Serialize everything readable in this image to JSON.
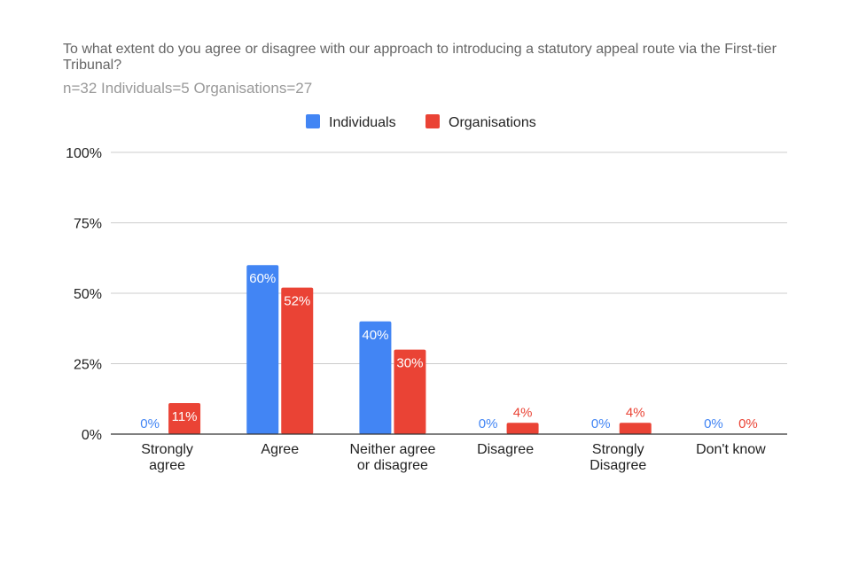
{
  "chart_data": {
    "type": "bar",
    "title": "To what extent do you agree or disagree with our approach to introducing a statutory appeal route via the First-tier Tribunal?",
    "subtitle": "n=32  Individuals=5  Organisations=27",
    "categories": [
      [
        "Strongly",
        "agree"
      ],
      [
        "Agree"
      ],
      [
        "Neither agree",
        "or disagree"
      ],
      [
        "Disagree"
      ],
      [
        "Strongly",
        "Disagree"
      ],
      [
        "Don't know"
      ]
    ],
    "series": [
      {
        "name": "Individuals",
        "color": "#4285f4",
        "values": [
          0,
          60,
          40,
          0,
          0,
          0
        ],
        "labels": [
          "0%",
          "60%",
          "40%",
          "0%",
          "0%",
          "0%"
        ]
      },
      {
        "name": "Organisations",
        "color": "#ea4335",
        "values": [
          11,
          52,
          30,
          4,
          4,
          0
        ],
        "labels": [
          "11%",
          "52%",
          "30%",
          "4%",
          "4%",
          "0%"
        ]
      }
    ],
    "yticks": [
      {
        "value": 0,
        "label": "0%"
      },
      {
        "value": 25,
        "label": "25%"
      },
      {
        "value": 50,
        "label": "50%"
      },
      {
        "value": 75,
        "label": "75%"
      },
      {
        "value": 100,
        "label": "100%"
      }
    ],
    "ylim": [
      0,
      100
    ],
    "xlabel": "",
    "ylabel": "",
    "legend_position": "top-center",
    "grid": true
  }
}
